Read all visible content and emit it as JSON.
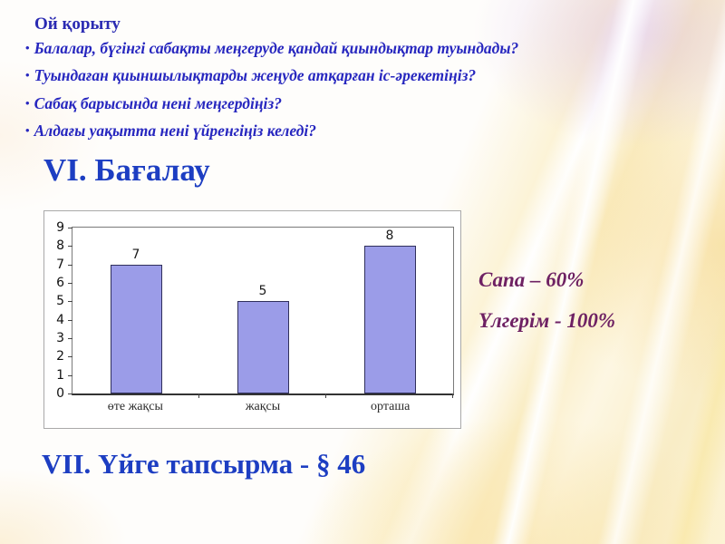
{
  "slide": {
    "bullet_char": "•",
    "title": "Ой қорыту",
    "bullets": [
      "Балалар, бүгінгі сабақты меңгеруде қандай қиындықтар туындады?",
      "Туындаған қиыншылықтарды жеңуде атқарған іс-әрекетіңіз?",
      "Сабақ барысында нені меңгердіңіз?",
      "Алдағы уақытта нені үйренгіңіз келеді?"
    ],
    "section_vi_heading": "VI. Бағалау",
    "section_vii_heading": "VII. Үйге тапсырма - § 46",
    "stats": {
      "quality": "Сапа – 60%",
      "progress": "Үлгерім - 100%"
    }
  },
  "chart_data": {
    "type": "bar",
    "categories": [
      "өте жақсы",
      "жақсы",
      "орташа"
    ],
    "values": [
      7,
      5,
      8
    ],
    "title": "",
    "xlabel": "",
    "ylabel": "",
    "ylim": [
      0,
      9
    ],
    "yticks": [
      0,
      1,
      2,
      3,
      4,
      5,
      6,
      7,
      8,
      9
    ],
    "value_labels_shown": true,
    "grid": false,
    "legend": "none",
    "bar_color": "#9b9ce8",
    "bar_border_color": "#30305c"
  },
  "colors": {
    "bullet_text": "#2727bf",
    "heading_blue": "#1d3ec2",
    "stats_purple": "#6e2163",
    "chart_panel_bg": "#ffffff"
  }
}
